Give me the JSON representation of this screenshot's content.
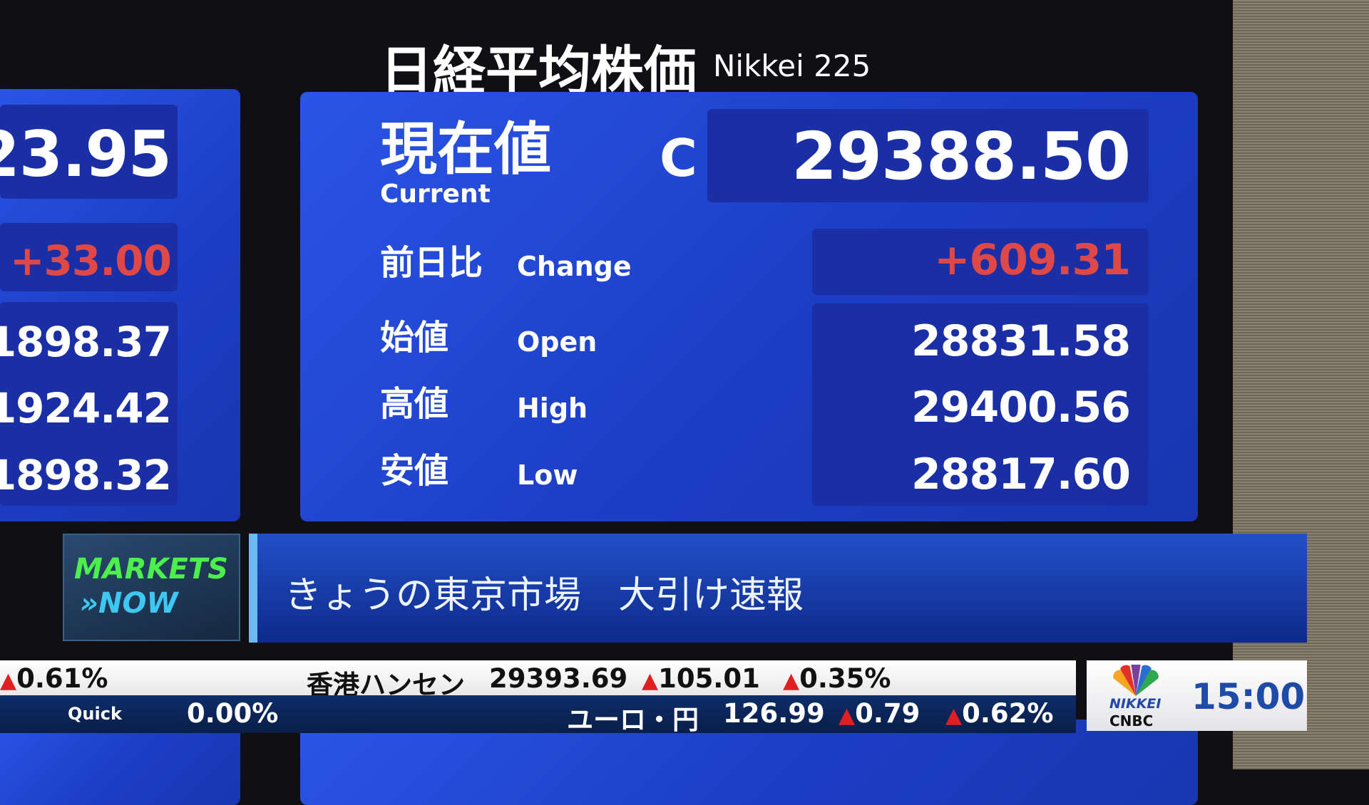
{
  "header": {
    "title_jp": "日経平均株価",
    "title_en": "Nikkei 225"
  },
  "main": {
    "current": {
      "label_jp": "現在値",
      "label_en": "Current",
      "flag": "C",
      "value": "29388.50"
    },
    "rows": [
      {
        "label_jp": "前日比",
        "label_en": "Change",
        "value": "+609.31"
      },
      {
        "label_jp": "始値",
        "label_en": "Open",
        "value": "28831.58"
      },
      {
        "label_jp": "高値",
        "label_en": "High",
        "value": "29400.56"
      },
      {
        "label_jp": "安値",
        "label_en": "Low",
        "value": "28817.60"
      }
    ]
  },
  "left_panel": {
    "current": "23.95",
    "change": "+33.00",
    "open": "1898.37",
    "high": "1924.42",
    "low": "1898.32"
  },
  "segment": {
    "logo_line1": "MARKETS",
    "logo_line2": "»NOW",
    "headline": "きょうの東京市場　大引け速報"
  },
  "ticker": {
    "top": {
      "left_pct": "0.61%",
      "name": "香港ハンセン",
      "value": "29393.69",
      "change": "105.01",
      "pct": "0.35%"
    },
    "bottom": {
      "source": "Quick",
      "left_pct": "0.00%",
      "name": "ユーロ・円",
      "value": "126.99",
      "change": "0.79",
      "pct": "0.62%"
    }
  },
  "channel": {
    "logo_top": "NIKKEI",
    "logo_bottom": "CNBC",
    "time": "15:00"
  },
  "colors": {
    "panel": "#1d3fc8",
    "up": "#e04848",
    "time": "#1e4aa8"
  }
}
